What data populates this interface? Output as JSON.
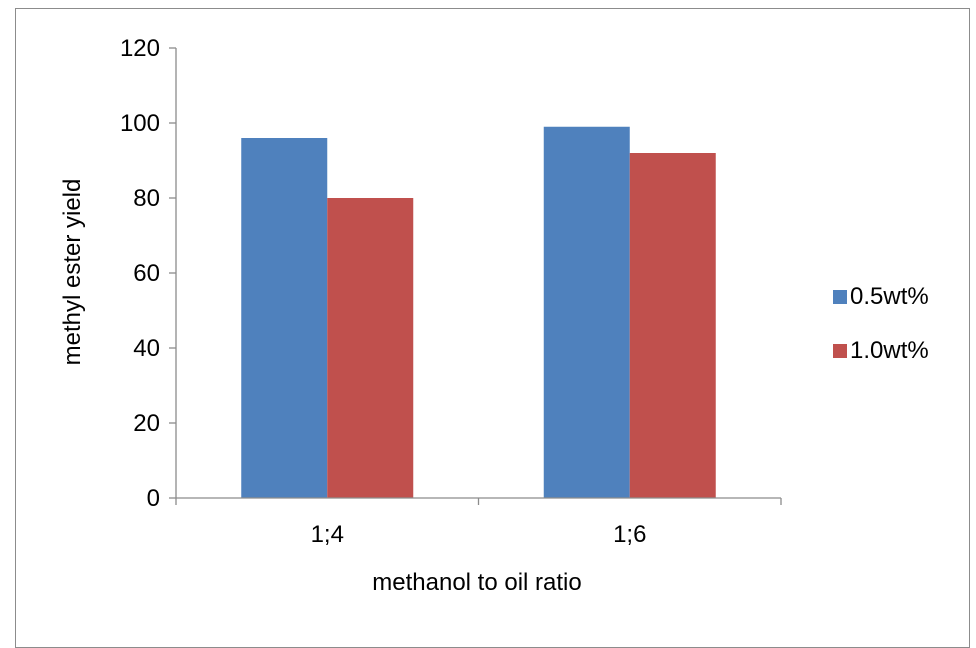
{
  "chart_data": {
    "type": "bar",
    "categories": [
      "1;4",
      "1;6"
    ],
    "series": [
      {
        "name": "0.5wt%",
        "values": [
          96,
          99
        ],
        "color": "#4F81BD"
      },
      {
        "name": "1.0wt%",
        "values": [
          80,
          92
        ],
        "color": "#C0504D"
      }
    ],
    "xlabel": "methanol to oil ratio",
    "ylabel": "methyl ester yield",
    "ylim": [
      0,
      120
    ],
    "yticks": [
      0,
      20,
      40,
      60,
      80,
      100,
      120
    ],
    "grid": false,
    "legend_position": "right"
  }
}
